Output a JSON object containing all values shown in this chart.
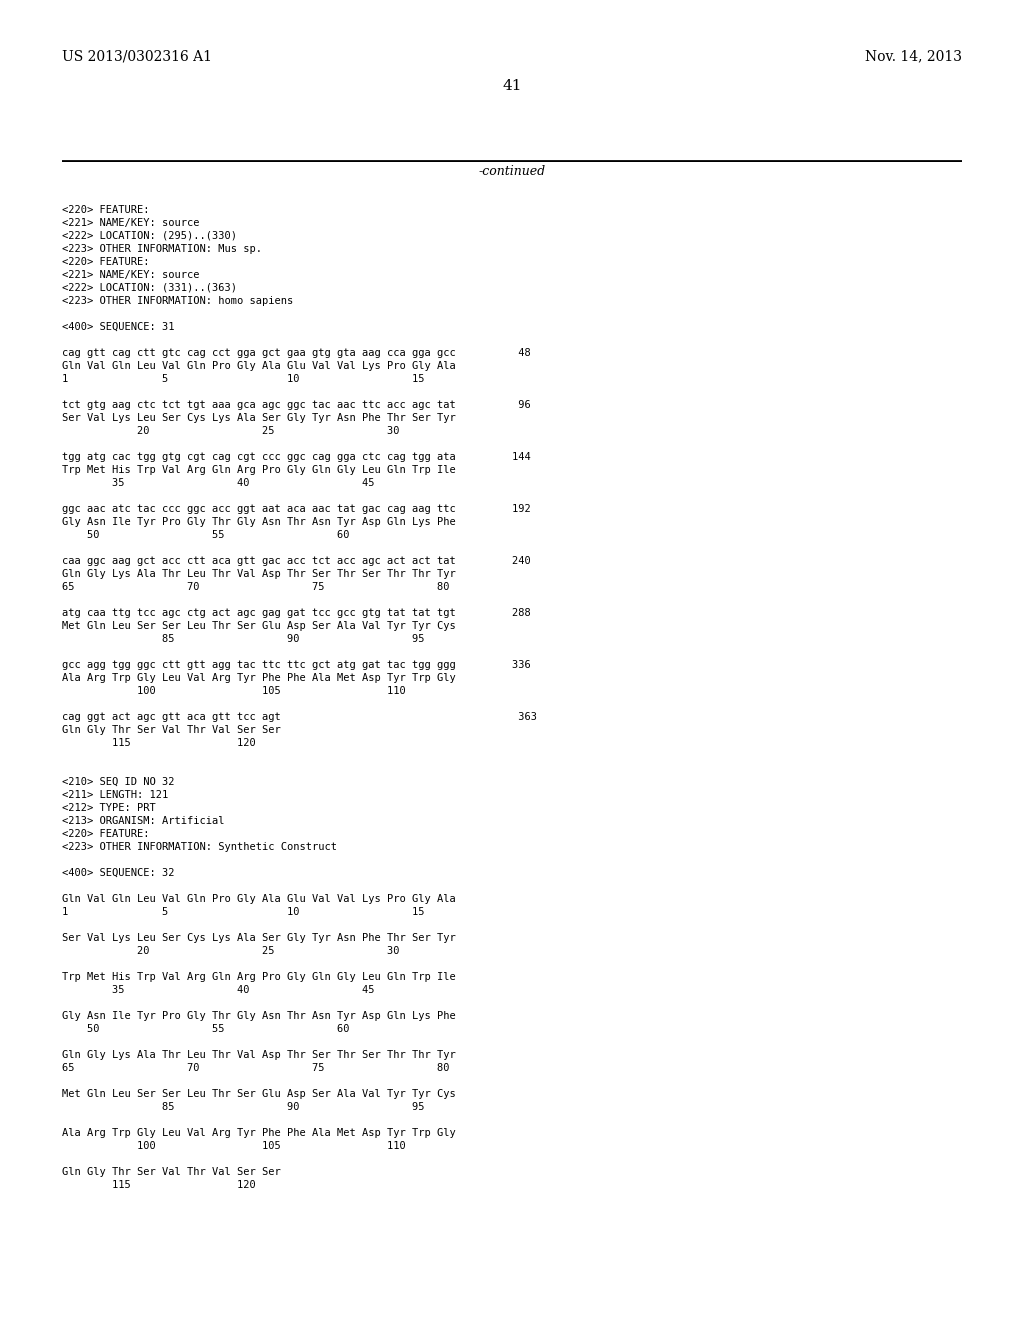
{
  "header_left": "US 2013/0302316 A1",
  "header_right": "Nov. 14, 2013",
  "page_number": "41",
  "continued_label": "-continued",
  "background_color": "#ffffff",
  "text_color": "#000000",
  "content": [
    "<220> FEATURE:",
    "<221> NAME/KEY: source",
    "<222> LOCATION: (295)..(330)",
    "<223> OTHER INFORMATION: Mus sp.",
    "<220> FEATURE:",
    "<221> NAME/KEY: source",
    "<222> LOCATION: (331)..(363)",
    "<223> OTHER INFORMATION: homo sapiens",
    "",
    "<400> SEQUENCE: 31",
    "",
    "cag gtt cag ctt gtc cag cct gga gct gaa gtg gta aag cca gga gcc          48",
    "Gln Val Gln Leu Val Gln Pro Gly Ala Glu Val Val Lys Pro Gly Ala",
    "1               5                   10                  15",
    "",
    "tct gtg aag ctc tct tgt aaa gca agc ggc tac aac ttc acc agc tat          96",
    "Ser Val Lys Leu Ser Cys Lys Ala Ser Gly Tyr Asn Phe Thr Ser Tyr",
    "            20                  25                  30",
    "",
    "tgg atg cac tgg gtg cgt cag cgt ccc ggc cag gga ctc cag tgg ata         144",
    "Trp Met His Trp Val Arg Gln Arg Pro Gly Gln Gly Leu Gln Trp Ile",
    "        35                  40                  45",
    "",
    "ggc aac atc tac ccc ggc acc ggt aat aca aac tat gac cag aag ttc         192",
    "Gly Asn Ile Tyr Pro Gly Thr Gly Asn Thr Asn Tyr Asp Gln Lys Phe",
    "    50                  55                  60",
    "",
    "caa ggc aag gct acc ctt aca gtt gac acc tct acc agc act act tat         240",
    "Gln Gly Lys Ala Thr Leu Thr Val Asp Thr Ser Thr Ser Thr Thr Tyr",
    "65                  70                  75                  80",
    "",
    "atg caa ttg tcc agc ctg act agc gag gat tcc gcc gtg tat tat tgt         288",
    "Met Gln Leu Ser Ser Leu Thr Ser Glu Asp Ser Ala Val Tyr Tyr Cys",
    "                85                  90                  95",
    "",
    "gcc agg tgg ggc ctt gtt agg tac ttc ttc gct atg gat tac tgg ggg         336",
    "Ala Arg Trp Gly Leu Val Arg Tyr Phe Phe Ala Met Asp Tyr Trp Gly",
    "            100                 105                 110",
    "",
    "cag ggt act agc gtt aca gtt tcc agt                                      363",
    "Gln Gly Thr Ser Val Thr Val Ser Ser",
    "        115                 120",
    "",
    "",
    "<210> SEQ ID NO 32",
    "<211> LENGTH: 121",
    "<212> TYPE: PRT",
    "<213> ORGANISM: Artificial",
    "<220> FEATURE:",
    "<223> OTHER INFORMATION: Synthetic Construct",
    "",
    "<400> SEQUENCE: 32",
    "",
    "Gln Val Gln Leu Val Gln Pro Gly Ala Glu Val Val Lys Pro Gly Ala",
    "1               5                   10                  15",
    "",
    "Ser Val Lys Leu Ser Cys Lys Ala Ser Gly Tyr Asn Phe Thr Ser Tyr",
    "            20                  25                  30",
    "",
    "Trp Met His Trp Val Arg Gln Arg Pro Gly Gln Gly Leu Gln Trp Ile",
    "        35                  40                  45",
    "",
    "Gly Asn Ile Tyr Pro Gly Thr Gly Asn Thr Asn Tyr Asp Gln Lys Phe",
    "    50                  55                  60",
    "",
    "Gln Gly Lys Ala Thr Leu Thr Val Asp Thr Ser Thr Ser Thr Thr Tyr",
    "65                  70                  75                  80",
    "",
    "Met Gln Leu Ser Ser Leu Thr Ser Glu Asp Ser Ala Val Tyr Tyr Cys",
    "                85                  90                  95",
    "",
    "Ala Arg Trp Gly Leu Val Arg Tyr Phe Phe Ala Met Asp Tyr Trp Gly",
    "            100                 105                 110",
    "",
    "Gln Gly Thr Ser Val Thr Val Ser Ser",
    "        115                 120"
  ]
}
